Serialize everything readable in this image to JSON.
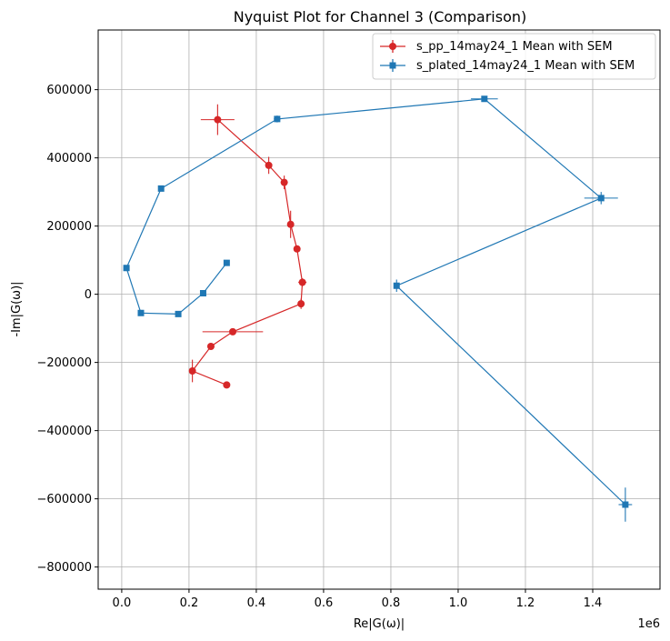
{
  "chart_data": {
    "type": "line",
    "title": "Nyquist Plot for Channel 3 (Comparison)",
    "xlabel": "Re|G(ω)|",
    "ylabel": "-Im|G(ω)|",
    "x_offset_label": "1e6",
    "xlim": [
      -70000,
      1600000
    ],
    "ylim": [
      -865000,
      775000
    ],
    "x_ticks": [
      0,
      200000,
      400000,
      600000,
      800000,
      1000000,
      1200000,
      1400000
    ],
    "x_tick_labels": [
      "0.0",
      "0.2",
      "0.4",
      "0.6",
      "0.8",
      "1.0",
      "1.2",
      "1.4"
    ],
    "y_ticks": [
      -800000,
      -600000,
      -400000,
      -200000,
      0,
      200000,
      400000,
      600000
    ],
    "y_tick_labels": [
      "−800000",
      "−600000",
      "−400000",
      "−200000",
      "0",
      "200000",
      "400000",
      "600000"
    ],
    "grid": true,
    "legend_position": "top-right",
    "series": [
      {
        "name": "s_pp_14may24_1 Mean with SEM",
        "color": "#d62728",
        "marker": "circle",
        "x": [
          285000,
          437000,
          483000,
          502000,
          521000,
          537000,
          533000,
          330000,
          265000,
          210000,
          312000
        ],
        "y": [
          512000,
          378000,
          328000,
          205000,
          133000,
          35000,
          -28000,
          -110000,
          -153000,
          -225000,
          -266000
        ],
        "xerr": [
          50000,
          10000,
          8000,
          8000,
          8000,
          12000,
          8000,
          90000,
          5000,
          8000,
          5000
        ],
        "yerr": [
          45000,
          25000,
          20000,
          40000,
          10000,
          12000,
          15000,
          8000,
          10000,
          33000,
          8000
        ]
      },
      {
        "name": "s_plated_14may24_1 Mean with SEM",
        "color": "#1f77b4",
        "marker": "square",
        "x": [
          312000,
          242000,
          168000,
          57000,
          14000,
          117000,
          462000,
          1078000,
          1425000,
          817000,
          1497000
        ],
        "y": [
          92000,
          3000,
          -58000,
          -55000,
          77000,
          310000,
          514000,
          573000,
          282000,
          25000,
          -617000
        ],
        "xerr": [
          5000,
          5000,
          5000,
          5000,
          5000,
          5000,
          10000,
          40000,
          50000,
          5000,
          20000
        ],
        "yerr": [
          8000,
          5000,
          5000,
          5000,
          8000,
          8000,
          10000,
          8000,
          18000,
          18000,
          50000
        ]
      }
    ]
  }
}
